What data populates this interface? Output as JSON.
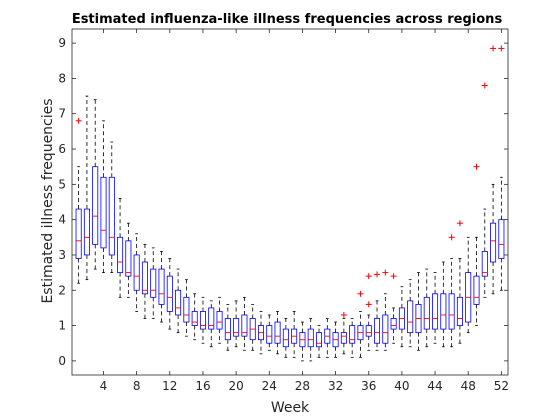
{
  "chart_data": {
    "type": "box",
    "title": "Estimated influenza-like illness frequencies across regions",
    "xlabel": "Week",
    "ylabel": "Estimated illness frequencies",
    "xlim": [
      0.2,
      52.8
    ],
    "ylim": [
      -0.4,
      9.4
    ],
    "x_ticks": [
      4,
      8,
      12,
      16,
      20,
      24,
      28,
      32,
      36,
      40,
      44,
      48,
      52
    ],
    "y_ticks": [
      0,
      1,
      2,
      3,
      4,
      5,
      6,
      7,
      8,
      9
    ],
    "grid": false,
    "colors": {
      "box": "#0000ff",
      "median": "#ff0000",
      "whisker": "#000000",
      "outlier": "#ff0000"
    },
    "boxes": [
      {
        "week": 1,
        "min": 2.2,
        "q1": 2.9,
        "median": 3.4,
        "q3": 4.3,
        "max": 5.5,
        "outliers": [
          6.8
        ]
      },
      {
        "week": 2,
        "min": 2.3,
        "q1": 3.0,
        "median": 3.5,
        "q3": 4.3,
        "max": 7.5,
        "outliers": []
      },
      {
        "week": 3,
        "min": 2.6,
        "q1": 3.3,
        "median": 4.1,
        "q3": 5.5,
        "max": 7.4,
        "outliers": []
      },
      {
        "week": 4,
        "min": 2.5,
        "q1": 3.2,
        "median": 3.7,
        "q3": 5.2,
        "max": 6.8,
        "outliers": []
      },
      {
        "week": 5,
        "min": 2.5,
        "q1": 3.0,
        "median": 3.5,
        "q3": 5.2,
        "max": 6.2,
        "outliers": []
      },
      {
        "week": 6,
        "min": 1.8,
        "q1": 2.5,
        "median": 2.8,
        "q3": 3.5,
        "max": 4.6,
        "outliers": []
      },
      {
        "week": 7,
        "min": 1.8,
        "q1": 2.4,
        "median": 2.5,
        "q3": 3.4,
        "max": 3.9,
        "outliers": []
      },
      {
        "week": 8,
        "min": 1.4,
        "q1": 2.0,
        "median": 2.4,
        "q3": 3.0,
        "max": 3.6,
        "outliers": []
      },
      {
        "week": 9,
        "min": 1.2,
        "q1": 1.9,
        "median": 2.0,
        "q3": 2.8,
        "max": 3.3,
        "outliers": []
      },
      {
        "week": 10,
        "min": 1.2,
        "q1": 1.8,
        "median": 2.0,
        "q3": 2.6,
        "max": 3.2,
        "outliers": []
      },
      {
        "week": 11,
        "min": 1.1,
        "q1": 1.6,
        "median": 1.9,
        "q3": 2.6,
        "max": 3.1,
        "outliers": []
      },
      {
        "week": 12,
        "min": 0.9,
        "q1": 1.4,
        "median": 1.8,
        "q3": 2.4,
        "max": 2.9,
        "outliers": []
      },
      {
        "week": 13,
        "min": 0.8,
        "q1": 1.3,
        "median": 1.5,
        "q3": 2.0,
        "max": 2.6,
        "outliers": []
      },
      {
        "week": 14,
        "min": 0.7,
        "q1": 1.1,
        "median": 1.3,
        "q3": 1.8,
        "max": 2.3,
        "outliers": []
      },
      {
        "week": 15,
        "min": 0.6,
        "q1": 1.0,
        "median": 1.1,
        "q3": 1.4,
        "max": 1.9,
        "outliers": []
      },
      {
        "week": 16,
        "min": 0.5,
        "q1": 0.9,
        "median": 1.0,
        "q3": 1.4,
        "max": 1.8,
        "outliers": []
      },
      {
        "week": 17,
        "min": 0.4,
        "q1": 0.9,
        "median": 1.0,
        "q3": 1.5,
        "max": 1.7,
        "outliers": []
      },
      {
        "week": 18,
        "min": 0.5,
        "q1": 0.9,
        "median": 1.1,
        "q3": 1.4,
        "max": 1.8,
        "outliers": []
      },
      {
        "week": 19,
        "min": 0.3,
        "q1": 0.6,
        "median": 0.8,
        "q3": 1.2,
        "max": 1.6,
        "outliers": []
      },
      {
        "week": 20,
        "min": 0.4,
        "q1": 0.7,
        "median": 0.8,
        "q3": 1.2,
        "max": 1.7,
        "outliers": []
      },
      {
        "week": 21,
        "min": 0.3,
        "q1": 0.7,
        "median": 0.8,
        "q3": 1.3,
        "max": 1.8,
        "outliers": []
      },
      {
        "week": 22,
        "min": 0.3,
        "q1": 0.6,
        "median": 0.9,
        "q3": 1.2,
        "max": 1.6,
        "outliers": []
      },
      {
        "week": 23,
        "min": 0.2,
        "q1": 0.6,
        "median": 0.8,
        "q3": 1.0,
        "max": 1.4,
        "outliers": []
      },
      {
        "week": 24,
        "min": 0.3,
        "q1": 0.5,
        "median": 0.7,
        "q3": 1.0,
        "max": 1.3,
        "outliers": []
      },
      {
        "week": 25,
        "min": 0.2,
        "q1": 0.5,
        "median": 0.7,
        "q3": 1.1,
        "max": 1.4,
        "outliers": []
      },
      {
        "week": 26,
        "min": 0.1,
        "q1": 0.4,
        "median": 0.6,
        "q3": 0.9,
        "max": 1.2,
        "outliers": []
      },
      {
        "week": 27,
        "min": 0.1,
        "q1": 0.5,
        "median": 0.7,
        "q3": 0.9,
        "max": 1.4,
        "outliers": []
      },
      {
        "week": 28,
        "min": 0.0,
        "q1": 0.4,
        "median": 0.6,
        "q3": 0.8,
        "max": 1.1,
        "outliers": []
      },
      {
        "week": 29,
        "min": 0.0,
        "q1": 0.4,
        "median": 0.6,
        "q3": 0.9,
        "max": 1.2,
        "outliers": []
      },
      {
        "week": 30,
        "min": 0.1,
        "q1": 0.4,
        "median": 0.5,
        "q3": 0.8,
        "max": 1.0,
        "outliers": []
      },
      {
        "week": 31,
        "min": 0.1,
        "q1": 0.5,
        "median": 0.7,
        "q3": 0.9,
        "max": 1.2,
        "outliers": []
      },
      {
        "week": 32,
        "min": 0.1,
        "q1": 0.4,
        "median": 0.6,
        "q3": 0.8,
        "max": 1.1,
        "outliers": []
      },
      {
        "week": 33,
        "min": 0.2,
        "q1": 0.5,
        "median": 0.7,
        "q3": 0.8,
        "max": 1.2,
        "outliers": [
          1.3
        ]
      },
      {
        "week": 34,
        "min": 0.1,
        "q1": 0.5,
        "median": 0.6,
        "q3": 1.0,
        "max": 1.2,
        "outliers": []
      },
      {
        "week": 35,
        "min": 0.1,
        "q1": 0.6,
        "median": 0.8,
        "q3": 1.0,
        "max": 1.4,
        "outliers": [
          1.9
        ]
      },
      {
        "week": 36,
        "min": 0.3,
        "q1": 0.7,
        "median": 0.8,
        "q3": 1.0,
        "max": 1.3,
        "outliers": [
          2.4,
          1.6
        ]
      },
      {
        "week": 37,
        "min": 0.3,
        "q1": 0.5,
        "median": 0.8,
        "q3": 1.2,
        "max": 1.7,
        "outliers": [
          2.45
        ]
      },
      {
        "week": 38,
        "min": 0.3,
        "q1": 0.5,
        "median": 0.8,
        "q3": 1.3,
        "max": 1.9,
        "outliers": [
          2.5
        ]
      },
      {
        "week": 39,
        "min": 0.5,
        "q1": 0.9,
        "median": 1.0,
        "q3": 1.2,
        "max": 1.5,
        "outliers": [
          2.4
        ]
      },
      {
        "week": 40,
        "min": 0.4,
        "q1": 0.9,
        "median": 1.2,
        "q3": 1.5,
        "max": 2.1,
        "outliers": []
      },
      {
        "week": 41,
        "min": 0.4,
        "q1": 0.8,
        "median": 1.1,
        "q3": 1.7,
        "max": 2.3,
        "outliers": []
      },
      {
        "week": 42,
        "min": 0.3,
        "q1": 0.8,
        "median": 1.2,
        "q3": 1.6,
        "max": 2.5,
        "outliers": []
      },
      {
        "week": 43,
        "min": 0.4,
        "q1": 0.9,
        "median": 1.2,
        "q3": 1.8,
        "max": 2.6,
        "outliers": []
      },
      {
        "week": 44,
        "min": 0.5,
        "q1": 0.9,
        "median": 1.2,
        "q3": 1.9,
        "max": 2.5,
        "outliers": []
      },
      {
        "week": 45,
        "min": 0.4,
        "q1": 0.9,
        "median": 1.3,
        "q3": 1.9,
        "max": 2.8,
        "outliers": []
      },
      {
        "week": 46,
        "min": 0.4,
        "q1": 0.9,
        "median": 1.3,
        "q3": 1.9,
        "max": 2.9,
        "outliers": [
          3.5
        ]
      },
      {
        "week": 47,
        "min": 0.5,
        "q1": 1.0,
        "median": 1.2,
        "q3": 1.8,
        "max": 2.9,
        "outliers": [
          3.9
        ]
      },
      {
        "week": 48,
        "min": 0.8,
        "q1": 1.1,
        "median": 1.8,
        "q3": 2.5,
        "max": 3.5,
        "outliers": []
      },
      {
        "week": 49,
        "min": 1.0,
        "q1": 1.6,
        "median": 1.8,
        "q3": 2.4,
        "max": 3.5,
        "outliers": [
          5.5
        ]
      },
      {
        "week": 50,
        "min": 1.8,
        "q1": 2.4,
        "median": 2.5,
        "q3": 3.1,
        "max": 4.3,
        "outliers": [
          7.8
        ]
      },
      {
        "week": 51,
        "min": 1.9,
        "q1": 2.8,
        "median": 3.4,
        "q3": 3.9,
        "max": 5.0,
        "outliers": [
          8.85
        ]
      },
      {
        "week": 52,
        "min": 2.0,
        "q1": 2.9,
        "median": 3.3,
        "q3": 4.0,
        "max": 5.2,
        "outliers": [
          8.85
        ]
      }
    ]
  }
}
